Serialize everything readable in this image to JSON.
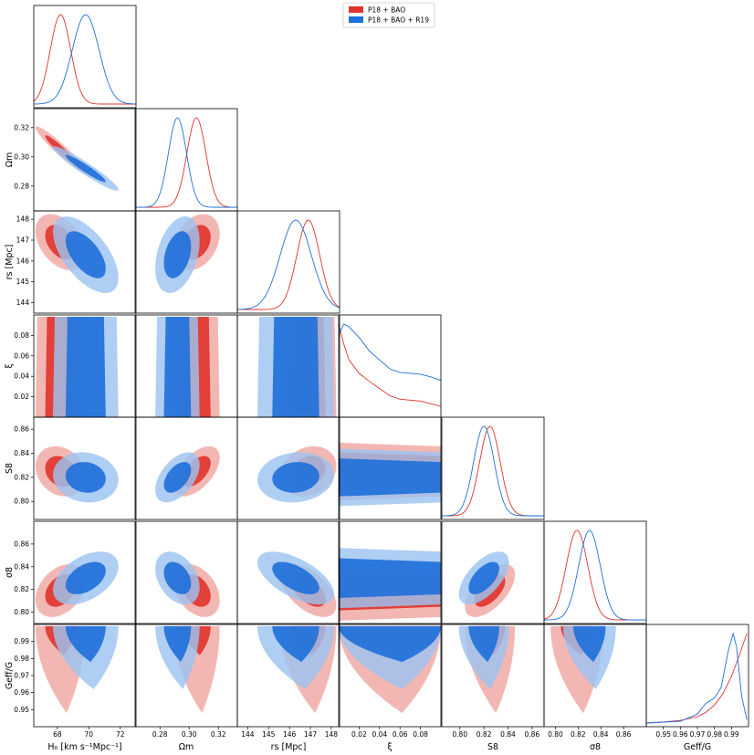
{
  "chart_data": {
    "type": "corner",
    "legend": {
      "placement": "top-right",
      "entries": [
        {
          "label": "P18 + BAO",
          "color": "#e0332b"
        },
        {
          "label": "P18 + BAO + R19",
          "color": "#1e6fd9"
        }
      ]
    },
    "colors": {
      "p18": "#e0332b",
      "r19": "#1e6fd9",
      "p18_outer": "#f0a7a2",
      "p18_inner": "#e0332b",
      "r19_outer": "#9cc3f0",
      "r19_inner": "#1e6fd9"
    },
    "parameters": [
      {
        "name": "H0",
        "label": "H₀ [km s⁻¹Mpc⁻¹]",
        "range": [
          66.5,
          73
        ],
        "ticks": [
          "68",
          "70",
          "72"
        ],
        "tick_values": [
          68,
          70,
          72
        ]
      },
      {
        "name": "Om",
        "label": "Ωm",
        "range": [
          0.263,
          0.333
        ],
        "ticks": [
          "0.28",
          "0.30",
          "0.32"
        ],
        "tick_values": [
          0.28,
          0.3,
          0.32
        ]
      },
      {
        "name": "rs",
        "label": "rs [Mpc]",
        "range": [
          143.5,
          148.4
        ],
        "ticks": [
          "144",
          "145",
          "146",
          "147",
          "148"
        ],
        "tick_values": [
          144,
          145,
          146,
          147,
          148
        ]
      },
      {
        "name": "xi",
        "label": "ξ",
        "range": [
          0.0,
          0.1
        ],
        "ticks": [
          "0.02",
          "0.04",
          "0.06",
          "0.08"
        ],
        "tick_values": [
          0.02,
          0.04,
          0.06,
          0.08
        ]
      },
      {
        "name": "S8",
        "label": "S8",
        "range": [
          0.785,
          0.87
        ],
        "ticks": [
          "0.80",
          "0.82",
          "0.84",
          "0.86"
        ],
        "tick_values": [
          0.8,
          0.82,
          0.84,
          0.86
        ]
      },
      {
        "name": "sigma8",
        "label": "σ8",
        "range": [
          0.79,
          0.88
        ],
        "ticks": [
          "0.80",
          "0.82",
          "0.84",
          "0.86"
        ],
        "tick_values": [
          0.8,
          0.82,
          0.84,
          0.86
        ]
      },
      {
        "name": "Geff",
        "label": "Geff/G",
        "range": [
          0.94,
          1.0
        ],
        "ticks": [
          "0.95",
          "0.96",
          "0.97",
          "0.98",
          "0.99"
        ],
        "tick_values": [
          0.95,
          0.96,
          0.97,
          0.98,
          0.99
        ]
      }
    ],
    "marginals": {
      "H0": {
        "p18": {
          "type": "gauss",
          "mean": 68.2,
          "sd": 0.65
        },
        "r19": {
          "type": "gauss",
          "mean": 69.8,
          "sd": 0.85
        }
      },
      "Om": {
        "p18": {
          "type": "gauss",
          "mean": 0.305,
          "sd": 0.0065
        },
        "r19": {
          "type": "gauss",
          "mean": 0.292,
          "sd": 0.0062
        }
      },
      "rs": {
        "p18": {
          "type": "gauss",
          "mean": 146.9,
          "sd": 0.55
        },
        "r19": {
          "type": "gauss",
          "mean": 146.3,
          "sd": 0.75
        }
      },
      "xi": {
        "p18": {
          "type": "curve",
          "x": [
            0.0,
            0.005,
            0.01,
            0.02,
            0.03,
            0.04,
            0.05,
            0.06,
            0.07,
            0.08,
            0.09,
            0.1
          ],
          "y": [
            1.0,
            0.78,
            0.6,
            0.45,
            0.36,
            0.28,
            0.2,
            0.16,
            0.15,
            0.14,
            0.11,
            0.08
          ]
        },
        "r19": {
          "type": "curve",
          "x": [
            0.0,
            0.005,
            0.01,
            0.02,
            0.03,
            0.04,
            0.05,
            0.06,
            0.07,
            0.08,
            0.09,
            0.1
          ],
          "y": [
            0.88,
            1.0,
            0.97,
            0.85,
            0.7,
            0.6,
            0.5,
            0.46,
            0.45,
            0.44,
            0.41,
            0.37
          ]
        }
      },
      "S8": {
        "p18": {
          "type": "gauss",
          "mean": 0.825,
          "sd": 0.0085
        },
        "r19": {
          "type": "gauss",
          "mean": 0.82,
          "sd": 0.0085
        }
      },
      "sigma8": {
        "p18": {
          "type": "gauss",
          "mean": 0.819,
          "sd": 0.0095
        },
        "r19": {
          "type": "gauss",
          "mean": 0.83,
          "sd": 0.0095
        }
      },
      "Geff": {
        "p18": {
          "type": "curve",
          "x": [
            0.94,
            0.95,
            0.96,
            0.97,
            0.975,
            0.98,
            0.985,
            0.99,
            0.995,
            0.999
          ],
          "y": [
            0.0,
            0.01,
            0.03,
            0.07,
            0.12,
            0.2,
            0.33,
            0.52,
            0.78,
            1.0
          ]
        },
        "r19": {
          "type": "curve",
          "x": [
            0.94,
            0.96,
            0.97,
            0.975,
            0.98,
            0.984,
            0.988,
            0.991,
            0.993,
            0.996,
            0.999
          ],
          "y": [
            0.0,
            0.02,
            0.1,
            0.22,
            0.28,
            0.4,
            0.8,
            1.0,
            0.85,
            0.3,
            0.04
          ]
        }
      }
    },
    "joint": [
      {
        "x": "H0",
        "y": "Om",
        "p18": {
          "cx": 68.2,
          "cy": 0.305,
          "corr": -0.95
        },
        "r19": {
          "cx": 69.8,
          "cy": 0.292,
          "corr": -0.95
        }
      },
      {
        "x": "H0",
        "y": "rs",
        "p18": {
          "cx": 68.2,
          "cy": 146.9,
          "corr": -0.4
        },
        "r19": {
          "cx": 69.8,
          "cy": 146.3,
          "corr": -0.6
        }
      },
      {
        "x": "Om",
        "y": "rs",
        "p18": {
          "cx": 0.305,
          "cy": 146.9,
          "corr": 0.3
        },
        "r19": {
          "cx": 0.292,
          "cy": 146.3,
          "corr": 0.35
        }
      },
      {
        "x": "H0",
        "y": "S8",
        "p18": {
          "cx": 68.2,
          "cy": 0.825,
          "corr": -0.2
        },
        "r19": {
          "cx": 69.8,
          "cy": 0.82,
          "corr": -0.1
        }
      },
      {
        "x": "Om",
        "y": "S8",
        "p18": {
          "cx": 0.305,
          "cy": 0.825,
          "corr": 0.55
        },
        "r19": {
          "cx": 0.292,
          "cy": 0.82,
          "corr": 0.5
        }
      },
      {
        "x": "rs",
        "y": "S8",
        "p18": {
          "cx": 146.9,
          "cy": 0.825,
          "corr": 0.2
        },
        "r19": {
          "cx": 146.3,
          "cy": 0.82,
          "corr": 0.1
        }
      },
      {
        "x": "S8",
        "y": "sigma8",
        "p18": {
          "cx": 0.825,
          "cy": 0.819,
          "corr": 0.6
        },
        "r19": {
          "cx": 0.82,
          "cy": 0.83,
          "corr": 0.6
        }
      },
      {
        "x": "H0",
        "y": "sigma8",
        "p18": {
          "cx": 68.2,
          "cy": 0.819,
          "corr": 0.35
        },
        "r19": {
          "cx": 69.8,
          "cy": 0.83,
          "corr": 0.45
        }
      },
      {
        "x": "Om",
        "y": "sigma8",
        "p18": {
          "cx": 0.305,
          "cy": 0.819,
          "corr": -0.35
        },
        "r19": {
          "cx": 0.292,
          "cy": 0.83,
          "corr": -0.35
        }
      },
      {
        "x": "rs",
        "y": "sigma8",
        "p18": {
          "cx": 146.9,
          "cy": 0.819,
          "corr": -0.55
        },
        "r19": {
          "cx": 146.3,
          "cy": 0.83,
          "corr": -0.6
        }
      }
    ]
  }
}
